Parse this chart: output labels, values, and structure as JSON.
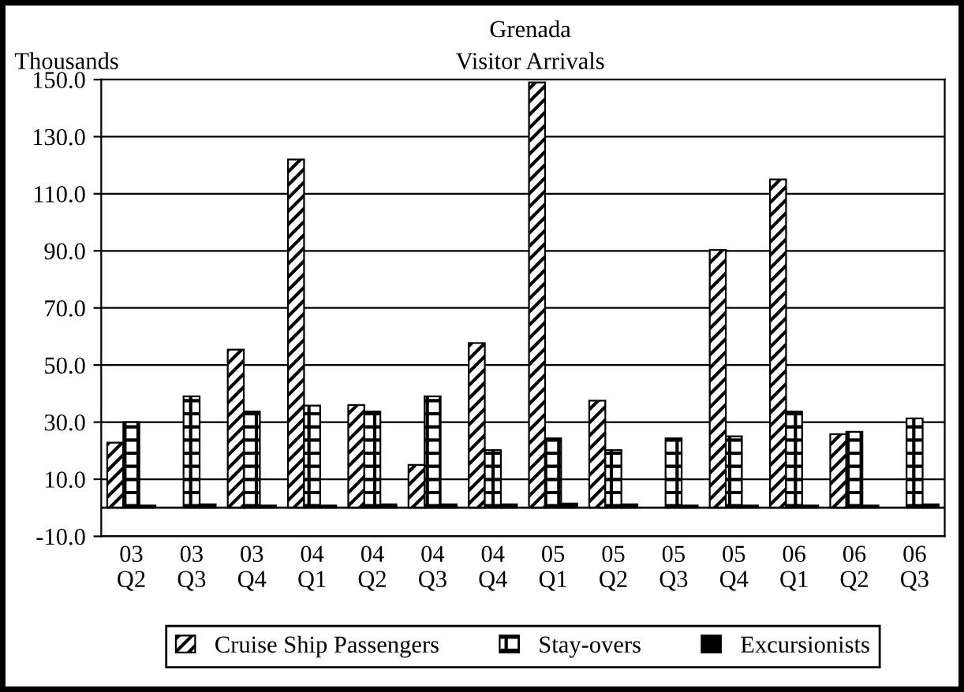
{
  "chart_data": {
    "type": "bar",
    "title": "Grenada\nVisitor Arrivals",
    "ylabel": "Thousands",
    "categories": [
      "03\nQ2",
      "03\nQ3",
      "03\nQ4",
      "04\nQ1",
      "04\nQ2",
      "04\nQ3",
      "04\nQ4",
      "05\nQ1",
      "05\nQ2",
      "05\nQ3",
      "05\nQ4",
      "06\nQ1",
      "06\nQ2",
      "06\nQ3"
    ],
    "series": [
      {
        "name": "Cruise Ship Passengers",
        "color": "#000000",
        "values": [
          22.8,
          null,
          55.4,
          122,
          36,
          15,
          57.7,
          149,
          37.5,
          null,
          90.3,
          115,
          25.8,
          null
        ]
      },
      {
        "name": "Stay-overs",
        "color": "#000000",
        "values": [
          30,
          39,
          33.7,
          35.8,
          33.7,
          39,
          20.2,
          24.3,
          20.2,
          24.3,
          25,
          33.7,
          26.6,
          31.3
        ]
      },
      {
        "name": "Excursionists",
        "color": "#000000",
        "values": [
          0.8,
          1.2,
          0.8,
          0.8,
          1.2,
          1.2,
          1.2,
          1.5,
          1.2,
          0.8,
          0.8,
          0.8,
          0.8,
          1.2
        ]
      }
    ],
    "ylim": [
      -10,
      150
    ],
    "yticks": [
      {
        "value": -10,
        "label": "-10.0"
      },
      {
        "value": 10,
        "label": "10.0"
      },
      {
        "value": 30,
        "label": "30.0"
      },
      {
        "value": 50,
        "label": "50.0"
      },
      {
        "value": 70,
        "label": "70.0"
      },
      {
        "value": 90,
        "label": "90.0"
      },
      {
        "value": 110,
        "label": "110.0"
      },
      {
        "value": 130,
        "label": "130.0"
      },
      {
        "value": 150,
        "label": "150.0"
      }
    ],
    "grid": "y",
    "legend": "bottom"
  }
}
